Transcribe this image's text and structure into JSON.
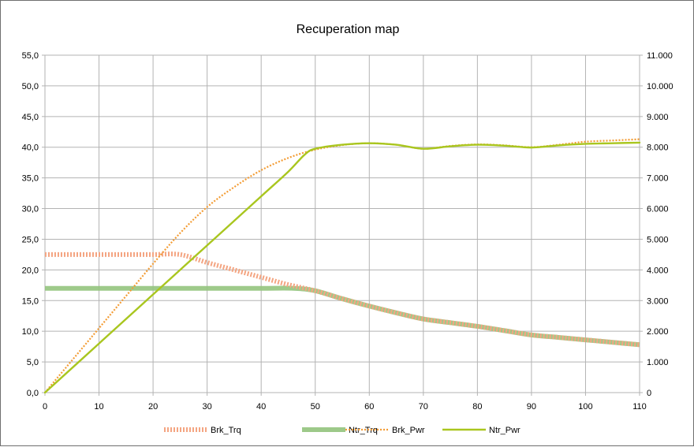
{
  "chart_data": {
    "type": "line",
    "title": "Recuperation map",
    "xlabel": "",
    "ylabel": "",
    "y2label": "",
    "xlim": [
      0,
      110
    ],
    "ylim": [
      0,
      55
    ],
    "y2lim": [
      0,
      11000
    ],
    "grid": true,
    "legend_position": "bottom",
    "x_ticks": [
      0,
      10,
      20,
      30,
      40,
      50,
      60,
      70,
      80,
      90,
      100,
      110
    ],
    "x_tick_labels": [
      "0",
      "10",
      "20",
      "30",
      "40",
      "50",
      "60",
      "70",
      "80",
      "90",
      "100",
      "110"
    ],
    "y_ticks": [
      0,
      5,
      10,
      15,
      20,
      25,
      30,
      35,
      40,
      45,
      50,
      55
    ],
    "y_tick_labels": [
      "0,0",
      "5,0",
      "10,0",
      "15,0",
      "20,0",
      "25,0",
      "30,0",
      "35,0",
      "40,0",
      "45,0",
      "50,0",
      "55,0"
    ],
    "y2_ticks": [
      0,
      1000,
      2000,
      3000,
      4000,
      5000,
      6000,
      7000,
      8000,
      9000,
      10000,
      11000
    ],
    "y2_tick_labels": [
      "0",
      "1.000",
      "2.000",
      "3.000",
      "4.000",
      "5.000",
      "6.000",
      "7.000",
      "8.000",
      "9.000",
      "10.000",
      "11.000"
    ],
    "series": [
      {
        "name": "Brk_Trq",
        "axis": "left",
        "color": "#f4a582",
        "style": "dashed-thick",
        "points": [
          [
            0,
            22.5
          ],
          [
            5,
            22.5
          ],
          [
            10,
            22.5
          ],
          [
            15,
            22.5
          ],
          [
            20,
            22.5
          ],
          [
            25,
            22.5
          ],
          [
            30,
            21.2
          ],
          [
            35,
            20.0
          ],
          [
            40,
            18.8
          ],
          [
            45,
            17.6
          ],
          [
            50,
            16.6
          ],
          [
            55,
            15.3
          ],
          [
            60,
            14.1
          ],
          [
            65,
            13.0
          ],
          [
            70,
            12.0
          ],
          [
            75,
            11.4
          ],
          [
            80,
            10.8
          ],
          [
            85,
            10.1
          ],
          [
            90,
            9.4
          ],
          [
            95,
            9.0
          ],
          [
            100,
            8.6
          ],
          [
            105,
            8.2
          ],
          [
            110,
            7.8
          ]
        ]
      },
      {
        "name": "Ntr_Trq",
        "axis": "left",
        "color": "#93c47d",
        "style": "solid-thick",
        "points": [
          [
            0,
            17.0
          ],
          [
            10,
            17.0
          ],
          [
            20,
            17.0
          ],
          [
            30,
            17.0
          ],
          [
            40,
            17.0
          ],
          [
            46,
            17.0
          ],
          [
            50,
            16.6
          ],
          [
            55,
            15.3
          ],
          [
            60,
            14.1
          ],
          [
            65,
            13.0
          ],
          [
            70,
            12.0
          ],
          [
            75,
            11.4
          ],
          [
            80,
            10.8
          ],
          [
            85,
            10.1
          ],
          [
            90,
            9.4
          ],
          [
            95,
            9.0
          ],
          [
            100,
            8.6
          ],
          [
            105,
            8.2
          ],
          [
            110,
            7.8
          ]
        ]
      },
      {
        "name": "Brk_Pwr",
        "axis": "right",
        "color": "#f39c34",
        "style": "dotted",
        "points": [
          [
            0,
            0
          ],
          [
            5,
            1050
          ],
          [
            10,
            2100
          ],
          [
            15,
            3150
          ],
          [
            20,
            4200
          ],
          [
            25,
            5200
          ],
          [
            30,
            6050
          ],
          [
            35,
            6700
          ],
          [
            40,
            7250
          ],
          [
            45,
            7650
          ],
          [
            50,
            7920
          ],
          [
            55,
            8070
          ],
          [
            60,
            8130
          ],
          [
            65,
            8080
          ],
          [
            70,
            7950
          ],
          [
            75,
            8040
          ],
          [
            80,
            8090
          ],
          [
            85,
            8060
          ],
          [
            90,
            8000
          ],
          [
            95,
            8080
          ],
          [
            100,
            8180
          ],
          [
            105,
            8220
          ],
          [
            110,
            8260
          ]
        ]
      },
      {
        "name": "Ntr_Pwr",
        "axis": "right",
        "color": "#a9c61f",
        "style": "solid",
        "points": [
          [
            0,
            0
          ],
          [
            10,
            1600
          ],
          [
            20,
            3200
          ],
          [
            30,
            4800
          ],
          [
            40,
            6400
          ],
          [
            45,
            7200
          ],
          [
            48,
            7750
          ],
          [
            50,
            7950
          ],
          [
            55,
            8080
          ],
          [
            60,
            8130
          ],
          [
            65,
            8080
          ],
          [
            70,
            7950
          ],
          [
            75,
            8030
          ],
          [
            80,
            8080
          ],
          [
            85,
            8050
          ],
          [
            90,
            7990
          ],
          [
            95,
            8060
          ],
          [
            100,
            8110
          ],
          [
            105,
            8130
          ],
          [
            110,
            8150
          ]
        ]
      }
    ]
  }
}
